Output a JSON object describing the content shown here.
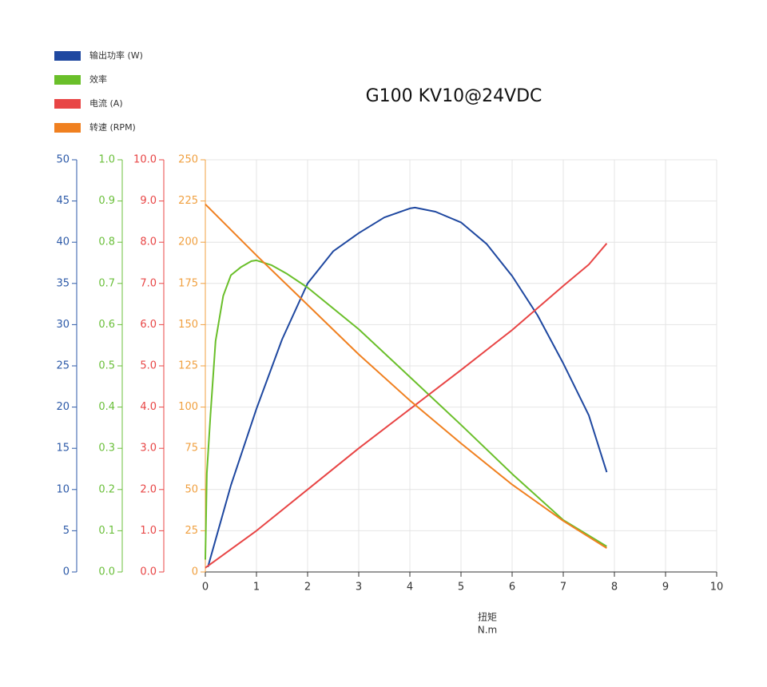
{
  "chart_data": {
    "type": "line",
    "title": "G100 KV10@24VDC",
    "x_label": "扭矩",
    "x_unit": "N.m",
    "xlim": [
      0,
      10
    ],
    "xticks": [
      0,
      1,
      2,
      3,
      4,
      5,
      6,
      7,
      8,
      9,
      10
    ],
    "grid": true,
    "y_axes": [
      {
        "color": "#2d5aa8",
        "ylim": [
          0,
          50
        ],
        "yticks": [
          0,
          5,
          10,
          15,
          20,
          25,
          30,
          35,
          40,
          45,
          50
        ]
      },
      {
        "color": "#6abf3a",
        "ylim": [
          0,
          1
        ],
        "yticks": [
          {
            "value": 0,
            "label": "0.0"
          },
          0.1,
          0.2,
          0.3,
          0.4,
          0.5,
          0.6,
          0.7,
          0.8,
          0.9,
          {
            "value": 1,
            "label": "1.0"
          }
        ]
      },
      {
        "color": "#e84545",
        "ylim": [
          0,
          10
        ],
        "yticks": [
          {
            "value": 0,
            "label": "0.0"
          },
          {
            "value": 1,
            "label": "1.0"
          },
          {
            "value": 2,
            "label": "2.0"
          },
          {
            "value": 3,
            "label": "3.0"
          },
          {
            "value": 4,
            "label": "4.0"
          },
          {
            "value": 5,
            "label": "5.0"
          },
          {
            "value": 6,
            "label": "6.0"
          },
          {
            "value": 7,
            "label": "7.0"
          },
          {
            "value": 8,
            "label": "8.0"
          },
          {
            "value": 9,
            "label": "9.0"
          },
          {
            "value": 10,
            "label": "10.0"
          }
        ]
      },
      {
        "color": "#f0a040",
        "ylim": [
          0,
          250
        ],
        "yticks": [
          0,
          25,
          50,
          75,
          100,
          125,
          150,
          175,
          200,
          225,
          250
        ]
      }
    ],
    "series": [
      {
        "name": "输出功率 (W)",
        "color": "#1f48a0",
        "axis": 0,
        "x": [
          0.05,
          0.5,
          1,
          1.5,
          2,
          2.5,
          3,
          3.5,
          4,
          4.1,
          4.5,
          5,
          5.5,
          6,
          6.5,
          7,
          7.5,
          7.85
        ],
        "values": [
          0.6,
          10.5,
          19.8,
          28.2,
          35.0,
          38.9,
          41.1,
          43.0,
          44.1,
          44.2,
          43.7,
          42.4,
          39.8,
          35.9,
          31.1,
          25.3,
          19.0,
          12.1
        ]
      },
      {
        "name": "效率",
        "color": "#6abf2a",
        "axis": 1,
        "x": [
          0,
          0.03,
          0.1,
          0.2,
          0.35,
          0.5,
          0.7,
          0.9,
          1,
          1.3,
          1.6,
          2,
          3,
          4,
          5,
          6,
          7,
          7.85
        ],
        "values": [
          0.03,
          0.24,
          0.38,
          0.56,
          0.67,
          0.72,
          0.74,
          0.754,
          0.756,
          0.744,
          0.723,
          0.69,
          0.589,
          0.473,
          0.357,
          0.238,
          0.126,
          0.062
        ]
      },
      {
        "name": "电流 (A)",
        "color": "#e84545",
        "axis": 2,
        "x": [
          0,
          1,
          2,
          3,
          4,
          5,
          6,
          7,
          7.5,
          7.85
        ],
        "values": [
          0.1,
          1.0,
          2.0,
          3.0,
          3.95,
          4.9,
          5.87,
          6.94,
          7.46,
          7.97
        ]
      },
      {
        "name": "转速 (RPM)",
        "color": "#f08020",
        "axis": 3,
        "x": [
          0,
          1,
          2,
          3,
          4,
          5,
          6,
          7,
          7.85
        ],
        "values": [
          223,
          192,
          162,
          132,
          104,
          78,
          53,
          31,
          14.5
        ]
      }
    ]
  }
}
